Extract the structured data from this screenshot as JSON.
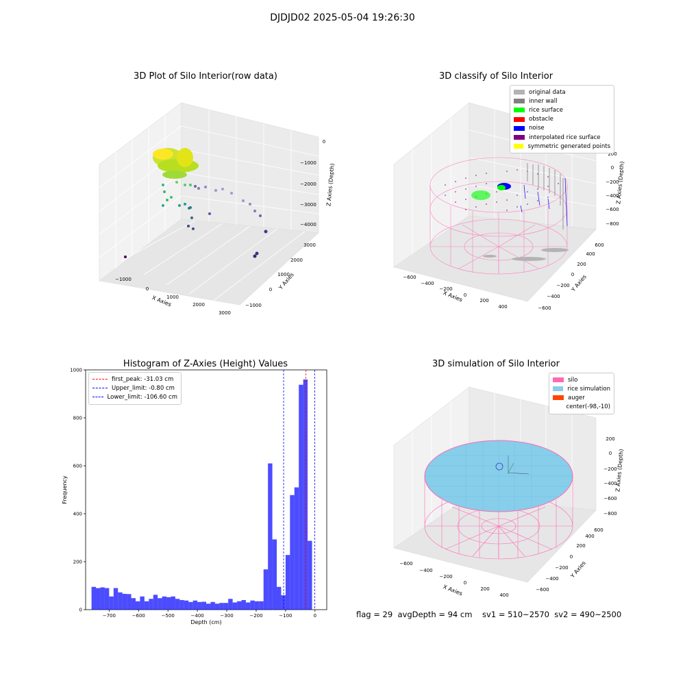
{
  "suptitle": "DJDJD02 2025-05-04 19:26:30",
  "colors": {
    "silo": "#ff69b4",
    "rice_sim": "#87ceeb",
    "auger": "#ff4500",
    "hist": "#0000ff",
    "first_peak": "#ff0000",
    "limits": "#0000ff"
  },
  "panel1": {
    "title": "3D Plot of Silo Interior(row data)",
    "xlabel": "X Axies",
    "ylabel": "Y Axies",
    "zlabel": "Z Axies (Depth)",
    "xticks": [
      "−1000",
      "0",
      "1000",
      "2000",
      "3000"
    ],
    "yticks": [
      "−1000",
      "0",
      "1000",
      "2000",
      "3000"
    ],
    "zticks": [
      "0",
      "−1000",
      "−2000",
      "−3000",
      "−4000"
    ]
  },
  "panel2": {
    "title": "3D classify of Silo Interior",
    "xlabel": "X Axies",
    "ylabel": "Y Axies",
    "zlabel": "Z Axies (Depth)",
    "xticks": [
      "−600",
      "−400",
      "−200",
      "0",
      "200",
      "400"
    ],
    "yticks": [
      "−600",
      "−400",
      "−200",
      "0",
      "200",
      "400",
      "600"
    ],
    "zticks": [
      "200",
      "0",
      "−200",
      "−400",
      "−600",
      "−800"
    ],
    "legend": [
      {
        "label": "original data",
        "color": "#b3b3b3"
      },
      {
        "label": "inner wall",
        "color": "#808080"
      },
      {
        "label": "rice surface",
        "color": "#00ff00"
      },
      {
        "label": "obstacle",
        "color": "#ff0000"
      },
      {
        "label": "noise",
        "color": "#0000ff"
      },
      {
        "label": "interpolated rice surface",
        "color": "#800080"
      },
      {
        "label": "symmetric generated points",
        "color": "#ffff00"
      }
    ]
  },
  "panel3": {
    "title": "Histogram of Z-Axies (Height) Values",
    "xlabel": "Depth (cm)",
    "ylabel": "Frequency",
    "legend": [
      {
        "label": "first_peak: -31.03 cm",
        "color": "#ff0000"
      },
      {
        "label": "Upper_limit: -0.80 cm",
        "color": "#0000ff"
      },
      {
        "label": "Lower_limit: -106.60 cm",
        "color": "#0000ff"
      }
    ]
  },
  "panel4": {
    "title": "3D simulation of Silo Interior",
    "xlabel": "X Axies",
    "ylabel": "Y Axies",
    "zlabel": "Z Axies (Depth)",
    "xticks": [
      "−600",
      "−400",
      "−200",
      "0",
      "200",
      "400"
    ],
    "yticks": [
      "−600",
      "−400",
      "−200",
      "0",
      "200",
      "400",
      "600"
    ],
    "zticks": [
      "200",
      "0",
      "−200",
      "−400",
      "−600",
      "−800"
    ],
    "legend": [
      {
        "label": "silo",
        "color": "#ff69b4"
      },
      {
        "label": "rice simulation",
        "color": "#87ceeb"
      },
      {
        "label": "auger",
        "color": "#ff4500"
      },
      {
        "label": "center(-98,-10)",
        "color": ""
      }
    ]
  },
  "footer": {
    "text": "flag = 29  avgDepth = 94 cm    sv1 = 510~2570  sv2 = 490~2500"
  },
  "chart_data": [
    {
      "type": "scatter",
      "title": "3D Plot of Silo Interior(row data)",
      "xlabel": "X Axies",
      "ylabel": "Y Axies",
      "zlabel": "Z Axies (Depth)",
      "xlim": [
        -1500,
        3200
      ],
      "ylim": [
        -1300,
        3200
      ],
      "zlim": [
        -4500,
        200
      ]
    },
    {
      "type": "scatter",
      "title": "3D classify of Silo Interior",
      "xlabel": "X Axies",
      "ylabel": "Y Axies",
      "zlabel": "Z Axies (Depth)",
      "series": [
        {
          "name": "original data"
        },
        {
          "name": "inner wall"
        },
        {
          "name": "rice surface"
        },
        {
          "name": "obstacle"
        },
        {
          "name": "noise"
        },
        {
          "name": "interpolated rice surface"
        },
        {
          "name": "symmetric generated points"
        }
      ],
      "xlim": [
        -700,
        500
      ],
      "ylim": [
        -650,
        650
      ],
      "zlim": [
        -900,
        250
      ]
    },
    {
      "type": "bar",
      "title": "Histogram of Z-Axies (Height) Values",
      "xlabel": "Depth (cm)",
      "ylabel": "Frequency",
      "xlim": [
        -780,
        40
      ],
      "ylim": [
        0,
        1000
      ],
      "xticks": [
        -700,
        -600,
        -500,
        -400,
        -300,
        -200,
        -100,
        0
      ],
      "yticks": [
        0,
        200,
        400,
        600,
        800,
        1000
      ],
      "bins": {
        "start": -760,
        "width": 15,
        "values": [
          95,
          90,
          93,
          90,
          55,
          90,
          72,
          66,
          65,
          48,
          35,
          55,
          35,
          45,
          62,
          48,
          55,
          52,
          55,
          45,
          40,
          38,
          32,
          38,
          32,
          33,
          25,
          32,
          25,
          28,
          28,
          45,
          30,
          35,
          40,
          30,
          38,
          35,
          35,
          168,
          610,
          293,
          95,
          60,
          228,
          478,
          510,
          938,
          960,
          287
        ]
      },
      "lines": [
        {
          "name": "first_peak: -31.03 cm",
          "x": -31.03
        },
        {
          "name": "Upper_limit: -0.80 cm",
          "x": -0.8
        },
        {
          "name": "Lower_limit: -106.60 cm",
          "x": -106.6
        }
      ]
    },
    {
      "type": "scatter",
      "title": "3D simulation of Silo Interior",
      "xlabel": "X Axies",
      "ylabel": "Y Axies",
      "zlabel": "Z Axies (Depth)",
      "series": [
        {
          "name": "silo"
        },
        {
          "name": "rice simulation"
        },
        {
          "name": "auger"
        }
      ],
      "annotation": "center(-98,-10)",
      "xlim": [
        -700,
        500
      ],
      "ylim": [
        -650,
        650
      ],
      "zlim": [
        -900,
        250
      ]
    }
  ]
}
